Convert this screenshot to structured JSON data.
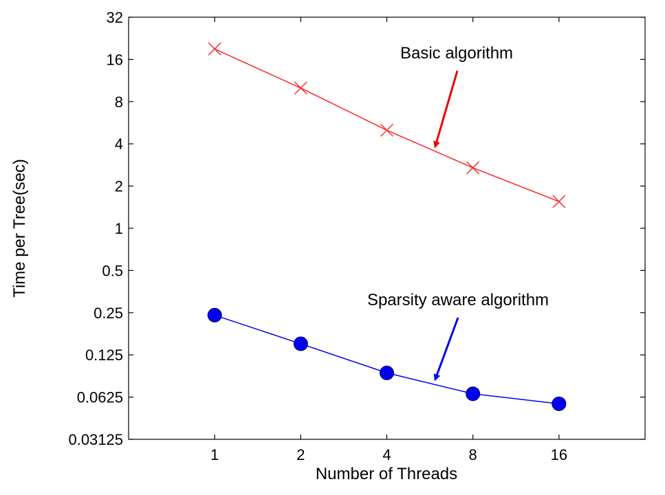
{
  "chart_data": {
    "type": "line",
    "title": "",
    "xlabel": "Number of Threads",
    "ylabel": "Time per Tree(sec)",
    "x_scale": "log2",
    "y_scale": "log2",
    "x": [
      1,
      2,
      4,
      8,
      16
    ],
    "x_tick_labels": [
      "1",
      "2",
      "4",
      "8",
      "16"
    ],
    "xlim": [
      0.5,
      32
    ],
    "y_ticks": [
      0.03125,
      0.0625,
      0.125,
      0.25,
      0.5,
      1,
      2,
      4,
      8,
      16,
      32
    ],
    "y_tick_labels": [
      "0.03125",
      "0.0625",
      "0.125",
      "0.25",
      "0.5",
      "1",
      "2",
      "4",
      "8",
      "16",
      "32"
    ],
    "ylim": [
      0.03125,
      32
    ],
    "grid": false,
    "series": [
      {
        "key": "basic",
        "values": [
          19.0,
          10.0,
          5.0,
          2.7,
          1.55
        ],
        "color": "#ff2222",
        "marker": "x"
      },
      {
        "key": "sparse",
        "values": [
          0.24,
          0.15,
          0.093,
          0.066,
          0.056
        ],
        "color": "#0000ee",
        "marker": "circle"
      }
    ],
    "annotations": [
      {
        "text": "Basic algorithm",
        "color": "#ee0000",
        "target_x": 5.9,
        "target_y": 3.8
      },
      {
        "text": "Sparsity aware algorithm",
        "color": "#0000ee",
        "target_x": 5.9,
        "target_y": 0.083
      }
    ]
  }
}
